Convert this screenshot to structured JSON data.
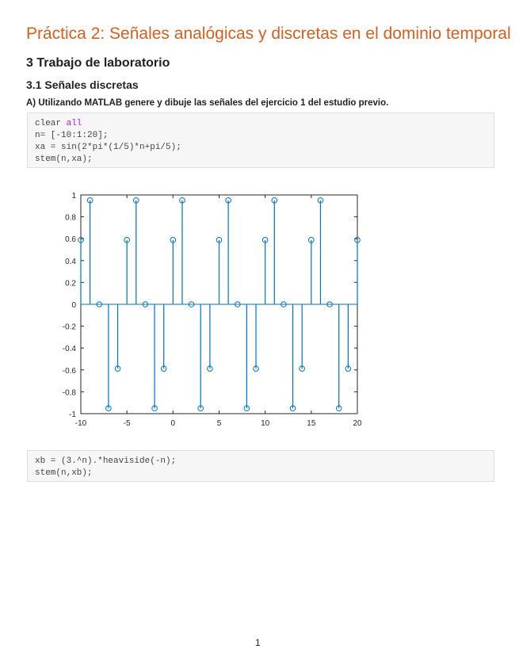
{
  "title": "Práctica 2: Señales analógicas y discretas en el dominio temporal",
  "heading1": "3 Trabajo de laboratorio",
  "heading2": "3.1 Señales discretas",
  "paragraph": "A) Utilizando MATLAB genere y dibuje las señales del ejercicio 1 del estudio previo.",
  "code1": {
    "line1_plain": "clear ",
    "line1_kw": "all",
    "line2": "n= [-10:1:20];",
    "line3": "xa = sin(2*pi*(1/5)*n+pi/5);",
    "line4": "stem(n,xa);"
  },
  "code2": {
    "line1": "xb = (3.^n).*heaviside(-n);",
    "line2": "stem(n,xb);"
  },
  "page_number": "1",
  "chart_data": {
    "type": "stem",
    "color": "#0072bd",
    "xlim": [
      -10,
      20
    ],
    "ylim": [
      -1,
      1
    ],
    "xticks": [
      "-10",
      "-5",
      "0",
      "5",
      "10",
      "15",
      "20"
    ],
    "yticks": [
      "-1",
      "-0.8",
      "-0.6",
      "-0.4",
      "-0.2",
      "0",
      "0.2",
      "0.4",
      "0.6",
      "0.8",
      "1"
    ],
    "x": [
      -10,
      -9,
      -8,
      -7,
      -6,
      -5,
      -4,
      -3,
      -2,
      -1,
      0,
      1,
      2,
      3,
      4,
      5,
      6,
      7,
      8,
      9,
      10,
      11,
      12,
      13,
      14,
      15,
      16,
      17,
      18,
      19,
      20
    ],
    "y": [
      0.588,
      0.951,
      0,
      -0.951,
      -0.588,
      0.588,
      0.951,
      0,
      -0.951,
      -0.588,
      0.588,
      0.951,
      0,
      -0.951,
      -0.588,
      0.588,
      0.951,
      0,
      -0.951,
      -0.588,
      0.588,
      0.951,
      0,
      -0.951,
      -0.588,
      0.588,
      0.951,
      0,
      -0.951,
      -0.588,
      0.588
    ]
  }
}
